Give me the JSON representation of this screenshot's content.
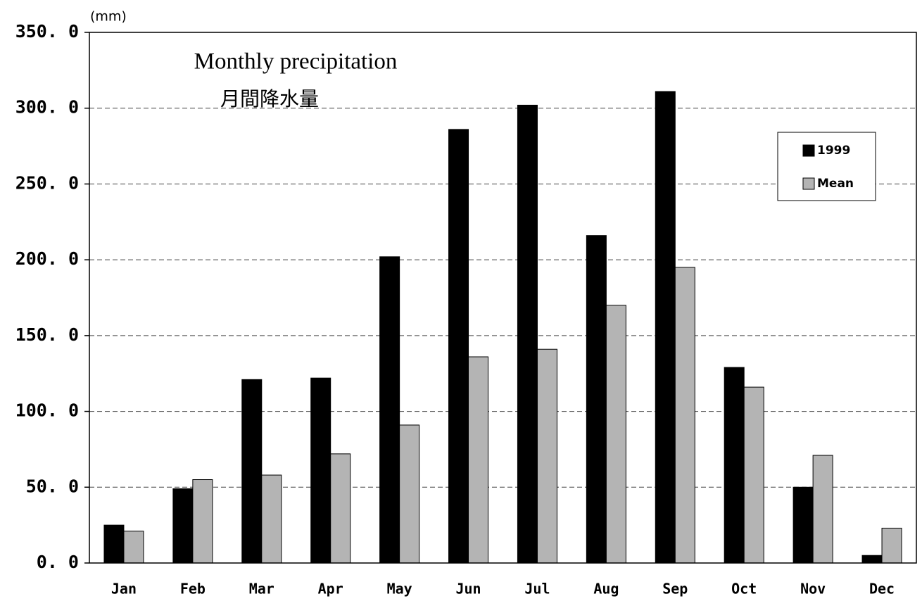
{
  "chart_data": {
    "type": "bar",
    "title": "Monthly precipitation",
    "subtitle": "月間降水量",
    "y_label": "(mm)",
    "categories": [
      "Jan",
      "Feb",
      "Mar",
      "Apr",
      "May",
      "Jun",
      "Jul",
      "Aug",
      "Sep",
      "Oct",
      "Nov",
      "Dec"
    ],
    "series": [
      {
        "name": "1999",
        "color": "#000000",
        "values": [
          25,
          49,
          121,
          122,
          202,
          286,
          302,
          216,
          311,
          129,
          50,
          5
        ]
      },
      {
        "name": "Mean",
        "color": "#b4b4b4",
        "values": [
          21,
          55,
          58,
          72,
          91,
          136,
          141,
          170,
          195,
          116,
          71,
          23
        ]
      }
    ],
    "ylim": [
      0,
      350
    ],
    "yticks": [
      {
        "value": 0,
        "label": "0. 0"
      },
      {
        "value": 50,
        "label": "50. 0"
      },
      {
        "value": 100,
        "label": "100. 0"
      },
      {
        "value": 150,
        "label": "150. 0"
      },
      {
        "value": 200,
        "label": "200. 0"
      },
      {
        "value": 250,
        "label": "250. 0"
      },
      {
        "value": 300,
        "label": "300. 0"
      },
      {
        "value": 350,
        "label": "350. 0"
      }
    ],
    "grid": true,
    "legend": "upper right"
  }
}
